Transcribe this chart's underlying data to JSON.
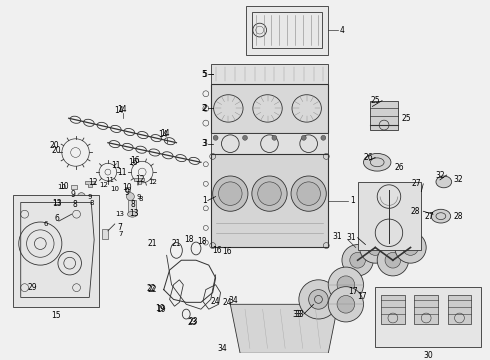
{
  "bg_color": "#f0f0f0",
  "line_color": "#333333",
  "fig_width": 4.9,
  "fig_height": 3.6,
  "dpi": 100,
  "label_fontsize": 5.5,
  "label_fontsize_sm": 5.0
}
